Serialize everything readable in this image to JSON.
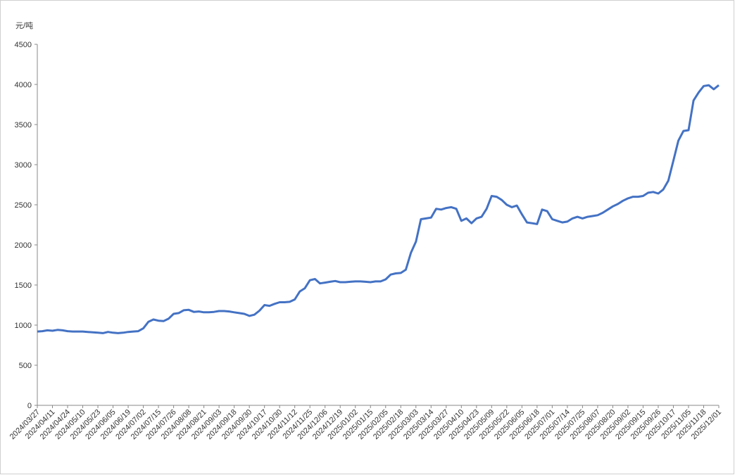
{
  "chart_data": {
    "type": "line",
    "y_label": "元/吨",
    "categories": [
      "2024/03/27",
      null,
      null,
      "2024/04/11",
      null,
      null,
      "2024/04/24",
      null,
      null,
      "2024/05/10",
      null,
      null,
      "2024/05/23",
      null,
      null,
      "2024/06/05",
      null,
      null,
      "2024/06/19",
      null,
      null,
      "2024/07/02",
      null,
      null,
      "2024/07/15",
      null,
      null,
      "2024/07/26",
      null,
      null,
      "2024/08/08",
      null,
      null,
      "2024/08/21",
      null,
      null,
      "2024/09/03",
      null,
      null,
      "2024/09/18",
      null,
      null,
      "2024/09/30",
      null,
      null,
      "2024/10/17",
      null,
      null,
      "2024/10/30",
      null,
      null,
      "2024/11/12",
      null,
      null,
      "2024/11/25",
      null,
      null,
      "2024/12/06",
      null,
      null,
      "2024/12/19",
      null,
      null,
      "2025/01/02",
      null,
      null,
      "2025/01/15",
      null,
      null,
      "2025/02/05",
      null,
      null,
      "2025/02/18",
      null,
      null,
      "2025/03/03",
      null,
      null,
      "2025/03/14",
      null,
      null,
      "2025/03/27",
      null,
      null,
      "2025/04/10",
      null,
      null,
      "2025/04/23",
      null,
      null,
      "2025/05/09",
      null,
      null,
      "2025/05/22",
      null,
      null,
      "2025/06/05",
      null,
      null,
      "2025/06/18",
      null,
      null,
      "2025/07/01",
      null,
      null,
      "2025/07/14",
      null,
      null,
      "2025/07/25",
      null,
      null,
      "2025/08/07",
      null,
      null,
      "2025/08/20",
      null,
      null,
      "2025/09/02",
      null,
      null,
      "2025/09/15",
      null,
      null,
      "2025/09/26",
      null,
      null,
      "2025/10/17",
      null,
      null,
      "2025/11/05",
      null,
      null,
      "2025/11/18",
      null,
      null,
      "2025/12/01"
    ],
    "series": [
      {
        "color": "#4472c4",
        "values": [
          920,
          925,
          935,
          930,
          940,
          935,
          925,
          920,
          920,
          920,
          915,
          910,
          905,
          900,
          915,
          905,
          900,
          905,
          915,
          920,
          925,
          960,
          1040,
          1070,
          1055,
          1050,
          1080,
          1140,
          1150,
          1185,
          1190,
          1165,
          1170,
          1160,
          1160,
          1165,
          1175,
          1175,
          1170,
          1160,
          1150,
          1140,
          1115,
          1130,
          1180,
          1250,
          1240,
          1265,
          1285,
          1285,
          1290,
          1320,
          1420,
          1460,
          1560,
          1575,
          1520,
          1530,
          1540,
          1550,
          1535,
          1535,
          1540,
          1545,
          1545,
          1540,
          1535,
          1545,
          1545,
          1570,
          1630,
          1645,
          1650,
          1690,
          1900,
          2040,
          2320,
          2330,
          2340,
          2450,
          2440,
          2460,
          2470,
          2450,
          2300,
          2330,
          2270,
          2330,
          2350,
          2450,
          2610,
          2600,
          2560,
          2500,
          2470,
          2490,
          2380,
          2280,
          2270,
          2260,
          2440,
          2420,
          2320,
          2300,
          2280,
          2290,
          2330,
          2350,
          2330,
          2350,
          2360,
          2370,
          2400,
          2440,
          2480,
          2510,
          2550,
          2580,
          2600,
          2600,
          2610,
          2650,
          2660,
          2640,
          2690,
          2800,
          3050,
          3300,
          3420,
          3430,
          3800,
          3900,
          3980,
          3990,
          3940,
          3990
        ]
      }
    ],
    "ylim": [
      0,
      4500
    ],
    "yticks": [
      0,
      500,
      1000,
      1500,
      2000,
      2500,
      3000,
      3500,
      4000,
      4500
    ]
  }
}
